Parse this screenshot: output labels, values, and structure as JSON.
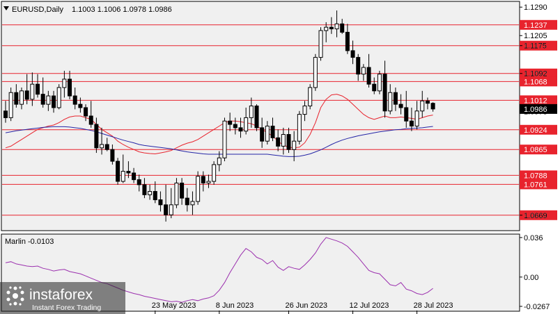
{
  "chart_data": {
    "type": "candlestick",
    "header": {
      "symbol": "EURUSD,Daily",
      "ohlc": "1.1003 1.1006 1.0978 1.0986"
    },
    "price_axis": {
      "ylim": [
        1.0625,
        1.1305
      ],
      "ticks": [
        "1.1290",
        "1.1205",
        "1.1175",
        "1.1092",
        "1.0978",
        "1.0669"
      ]
    },
    "current_price": "1.0986",
    "levels": [
      {
        "value": 1.1237,
        "label": "1.1237"
      },
      {
        "value": 1.1175,
        "label": "1.1175"
      },
      {
        "value": 1.1092,
        "label": "1.1092"
      },
      {
        "value": 1.1068,
        "label": "1.1068"
      },
      {
        "value": 1.1012,
        "label": "1.1012"
      },
      {
        "value": 1.0924,
        "label": "1.0924"
      },
      {
        "value": 1.0865,
        "label": "1.0865"
      },
      {
        "value": 1.0788,
        "label": "1.0788"
      },
      {
        "value": 1.0761,
        "label": "1.0761"
      },
      {
        "value": 1.0669,
        "label": "1.0669"
      }
    ],
    "date_labels": [
      "23 May 2023",
      "8 Jun 2023",
      "26 Jun 2023",
      "12 Jul 2023",
      "28 Jul 2023"
    ],
    "candles": [
      [
        1.098,
        1.101,
        1.0945,
        1.096
      ],
      [
        1.096,
        1.105,
        1.095,
        1.1035
      ],
      [
        1.1035,
        1.106,
        1.099,
        1.1
      ],
      [
        1.1,
        1.105,
        1.0985,
        1.104
      ],
      [
        1.104,
        1.109,
        1.1,
        1.1015
      ],
      [
        1.1015,
        1.1095,
        1.0995,
        1.106
      ],
      [
        1.106,
        1.109,
        1.102,
        1.103
      ],
      [
        1.103,
        1.108,
        1.099,
        1.1
      ],
      [
        1.1,
        1.104,
        1.098,
        1.1025
      ],
      [
        1.1025,
        1.104,
        1.0975,
        1.099
      ],
      [
        1.099,
        1.106,
        1.0985,
        1.105
      ],
      [
        1.105,
        1.11,
        1.102,
        1.1075
      ],
      [
        1.1075,
        1.11,
        1.1015,
        1.1025
      ],
      [
        1.1025,
        1.105,
        1.0985,
        1.1
      ],
      [
        1.1,
        1.102,
        1.0975,
        1.099
      ],
      [
        1.099,
        1.1,
        1.095,
        1.0965
      ],
      [
        1.0965,
        1.101,
        1.093,
        1.094
      ],
      [
        1.094,
        1.096,
        1.0855,
        1.087
      ],
      [
        1.087,
        1.093,
        1.085,
        1.088
      ],
      [
        1.088,
        1.09,
        1.086,
        1.0865
      ],
      [
        1.0865,
        1.088,
        1.082,
        1.083
      ],
      [
        1.083,
        1.084,
        1.076,
        1.077
      ],
      [
        1.077,
        1.085,
        1.0765,
        1.08
      ],
      [
        1.08,
        1.083,
        1.078,
        1.0795
      ],
      [
        1.0795,
        1.081,
        1.0765,
        1.0775
      ],
      [
        1.0775,
        1.079,
        1.074,
        1.076
      ],
      [
        1.076,
        1.078,
        1.072,
        1.073
      ],
      [
        1.073,
        1.076,
        1.0715,
        1.074
      ],
      [
        1.074,
        1.077,
        1.0705,
        1.0715
      ],
      [
        1.0715,
        1.074,
        1.068,
        1.07
      ],
      [
        1.07,
        1.076,
        1.065,
        1.067
      ],
      [
        1.067,
        1.075,
        1.066,
        1.07
      ],
      [
        1.07,
        1.078,
        1.069,
        1.0765
      ],
      [
        1.0765,
        1.078,
        1.07,
        1.072
      ],
      [
        1.072,
        1.075,
        1.068,
        1.07
      ],
      [
        1.07,
        1.074,
        1.067,
        1.071
      ],
      [
        1.071,
        1.08,
        1.07,
        1.0785
      ],
      [
        1.0785,
        1.08,
        1.074,
        1.0765
      ],
      [
        1.0765,
        1.079,
        1.075,
        1.077
      ],
      [
        1.077,
        1.083,
        1.076,
        1.082
      ],
      [
        1.082,
        1.086,
        1.08,
        1.084
      ],
      [
        1.084,
        1.096,
        1.083,
        1.095
      ],
      [
        1.095,
        1.0975,
        1.092,
        1.094
      ],
      [
        1.094,
        1.096,
        1.091,
        1.093
      ],
      [
        1.093,
        1.096,
        1.09,
        1.092
      ],
      [
        1.092,
        1.099,
        1.091,
        1.096
      ],
      [
        1.096,
        1.102,
        1.093,
        1.0995
      ],
      [
        1.0995,
        1.1,
        1.092,
        1.093
      ],
      [
        1.093,
        1.096,
        1.087,
        1.089
      ],
      [
        1.089,
        1.095,
        1.088,
        1.0935
      ],
      [
        1.0935,
        1.096,
        1.089,
        1.09
      ],
      [
        1.09,
        1.0925,
        1.086,
        1.0875
      ],
      [
        1.0875,
        1.093,
        1.085,
        1.091
      ],
      [
        1.091,
        1.093,
        1.0855,
        1.0865
      ],
      [
        1.0865,
        1.092,
        1.083,
        1.089
      ],
      [
        1.089,
        1.098,
        1.088,
        1.097
      ],
      [
        1.097,
        1.101,
        1.095,
        1.0995
      ],
      [
        1.0995,
        1.106,
        1.0985,
        1.105
      ],
      [
        1.105,
        1.115,
        1.104,
        1.114
      ],
      [
        1.114,
        1.123,
        1.113,
        1.122
      ],
      [
        1.122,
        1.1245,
        1.1185,
        1.123
      ],
      [
        1.123,
        1.126,
        1.121,
        1.1225
      ],
      [
        1.1225,
        1.128,
        1.12,
        1.124
      ],
      [
        1.124,
        1.1255,
        1.121,
        1.1215
      ],
      [
        1.1215,
        1.124,
        1.115,
        1.116
      ],
      [
        1.116,
        1.119,
        1.112,
        1.114
      ],
      [
        1.114,
        1.115,
        1.107,
        1.109
      ],
      [
        1.109,
        1.112,
        1.107,
        1.111
      ],
      [
        1.111,
        1.115,
        1.105,
        1.106
      ],
      [
        1.106,
        1.108,
        1.103,
        1.104
      ],
      [
        1.104,
        1.11,
        1.103,
        1.109
      ],
      [
        1.109,
        1.113,
        1.096,
        1.098
      ],
      [
        1.098,
        1.106,
        1.097,
        1.1035
      ],
      [
        1.1035,
        1.105,
        1.098,
        1.1
      ],
      [
        1.1,
        1.103,
        1.097,
        1.099
      ],
      [
        1.099,
        1.104,
        1.093,
        1.095
      ],
      [
        1.095,
        1.099,
        1.092,
        1.0935
      ],
      [
        1.0935,
        1.101,
        1.0925,
        1.098
      ],
      [
        1.098,
        1.104,
        1.096,
        1.101
      ],
      [
        1.101,
        1.102,
        1.0985,
        1.1003
      ],
      [
        1.1003,
        1.1006,
        1.0978,
        1.0986
      ]
    ],
    "series": [
      {
        "color": "#e8232d",
        "values": [
          1.087,
          1.0875,
          1.0885,
          1.0895,
          1.0905,
          1.0915,
          1.0925,
          1.093,
          1.0935,
          1.0938,
          1.0945,
          1.0955,
          1.0962,
          1.0965,
          1.0965,
          1.096,
          1.0955,
          1.094,
          1.0925,
          1.0915,
          1.0905,
          1.089,
          1.088,
          1.0872,
          1.0865,
          1.0858,
          1.0855,
          1.0853,
          1.0852,
          1.0855,
          1.0858,
          1.0862,
          1.087,
          1.0878,
          1.0884,
          1.0888,
          1.0895,
          1.0905,
          1.0915,
          1.0925,
          1.0935,
          1.0945,
          1.095,
          1.095,
          1.0948,
          1.0945,
          1.0942,
          1.0935,
          1.0925,
          1.0915,
          1.0905,
          1.089,
          1.0878,
          1.0872,
          1.087,
          1.0872,
          1.0885,
          1.091,
          1.0945,
          1.099,
          1.1015,
          1.1028,
          1.103,
          1.1025,
          1.1015,
          1.1,
          1.0985,
          1.097,
          1.096,
          1.0955,
          1.096,
          1.0965,
          1.096,
          1.096,
          1.0962,
          1.096,
          1.0958,
          1.0955,
          1.096,
          1.0965,
          1.0968
        ]
      },
      {
        "color": "#2525a6",
        "values": [
          1.0915,
          1.0918,
          1.0921,
          1.0923,
          1.0925,
          1.0927,
          1.0929,
          1.0931,
          1.0932,
          1.0933,
          1.0933,
          1.0933,
          1.0932,
          1.093,
          1.0928,
          1.0925,
          1.0922,
          1.0918,
          1.0913,
          1.0908,
          1.0903,
          1.0898,
          1.0893,
          1.0889,
          1.0885,
          1.088,
          1.0877,
          1.0875,
          1.0873,
          1.0871,
          1.0869,
          1.0867,
          1.0864,
          1.0861,
          1.0858,
          1.0856,
          1.0854,
          1.0852,
          1.0851,
          1.0851,
          1.0851,
          1.0851,
          1.0851,
          1.0851,
          1.0851,
          1.0851,
          1.0851,
          1.0851,
          1.0851,
          1.0851,
          1.0849,
          1.0847,
          1.0845,
          1.0844,
          1.0844,
          1.0845,
          1.0848,
          1.0852,
          1.0858,
          1.0864,
          1.0872,
          1.088,
          1.0887,
          1.0893,
          1.0898,
          1.0902,
          1.0906,
          1.0909,
          1.0912,
          1.0915,
          1.0918,
          1.092,
          1.0922,
          1.0924,
          1.0925,
          1.0927,
          1.0928,
          1.0929,
          1.093,
          1.0932,
          1.0934
        ]
      }
    ],
    "marlin": {
      "label": "Marlin -0.0103",
      "ylim": [
        -0.0305,
        0.0385
      ],
      "ticks": [
        "0.036",
        "0.00",
        "-0.0267"
      ],
      "color": "#9b2fae",
      "values": [
        0.013,
        0.014,
        0.012,
        0.011,
        0.01,
        0.0095,
        0.01,
        0.008,
        0.007,
        0.0055,
        0.0065,
        0.007,
        0.005,
        0.004,
        0.003,
        0.001,
        -0.001,
        -0.003,
        -0.005,
        -0.006,
        -0.008,
        -0.01,
        -0.012,
        -0.0135,
        -0.015,
        -0.016,
        -0.0175,
        -0.0185,
        -0.0195,
        -0.0205,
        -0.0215,
        -0.0225,
        -0.022,
        -0.023,
        -0.0215,
        -0.0205,
        -0.0215,
        -0.02,
        -0.019,
        -0.017,
        -0.012,
        -0.005,
        0.004,
        0.012,
        0.02,
        0.026,
        0.023,
        0.018,
        0.016,
        0.012,
        0.015,
        0.009,
        0.006,
        0.0095,
        0.008,
        0.007,
        0.011,
        0.016,
        0.022,
        0.03,
        0.036,
        0.0345,
        0.033,
        0.031,
        0.028,
        0.023,
        0.018,
        0.012,
        0.006,
        0.004,
        0.003,
        -0.002,
        -0.007,
        -0.008,
        -0.005,
        -0.011,
        -0.0125,
        -0.015,
        -0.016,
        -0.014,
        -0.0103
      ]
    }
  },
  "watermark": {
    "brand": "instaforex",
    "tagline": "Instant Forex Trading"
  }
}
